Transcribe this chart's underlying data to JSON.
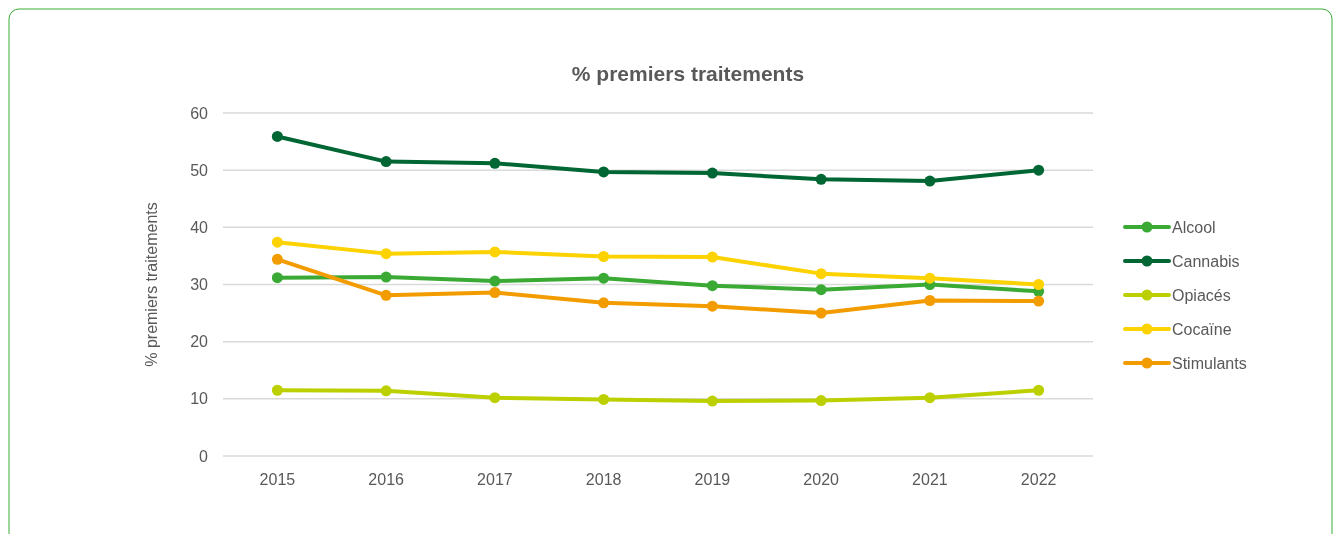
{
  "chart_data": {
    "type": "line",
    "title": "% premiers traitements",
    "ylabel": "% premiers traitements",
    "categories": [
      "2015",
      "2016",
      "2017",
      "2018",
      "2019",
      "2020",
      "2021",
      "2022"
    ],
    "ylim": [
      0,
      60
    ],
    "yticks": [
      0,
      10,
      20,
      30,
      40,
      50,
      60
    ],
    "grid": "y",
    "legend": "right",
    "marker": "circle",
    "line_style": "solid",
    "series": [
      {
        "name": "Alcool",
        "color": "#3aaa35",
        "values": [
          31.2,
          31.3,
          30.6,
          31.1,
          29.8,
          29.1,
          30.0,
          28.8
        ]
      },
      {
        "name": "Cannabis",
        "color": "#006633",
        "values": [
          55.9,
          51.5,
          51.2,
          49.7,
          49.5,
          48.4,
          48.1,
          50.0
        ]
      },
      {
        "name": "Opiacés",
        "color": "#bcd000",
        "values": [
          11.5,
          11.4,
          10.2,
          9.9,
          9.6,
          9.7,
          10.2,
          11.5
        ]
      },
      {
        "name": "Cocaïne",
        "color": "#fcd200",
        "values": [
          37.4,
          35.4,
          35.7,
          34.9,
          34.8,
          31.9,
          31.1,
          30.0
        ]
      },
      {
        "name": "Stimulants",
        "color": "#f39c00",
        "values": [
          34.4,
          28.1,
          28.6,
          26.8,
          26.2,
          25.0,
          27.2,
          27.1
        ]
      }
    ]
  }
}
